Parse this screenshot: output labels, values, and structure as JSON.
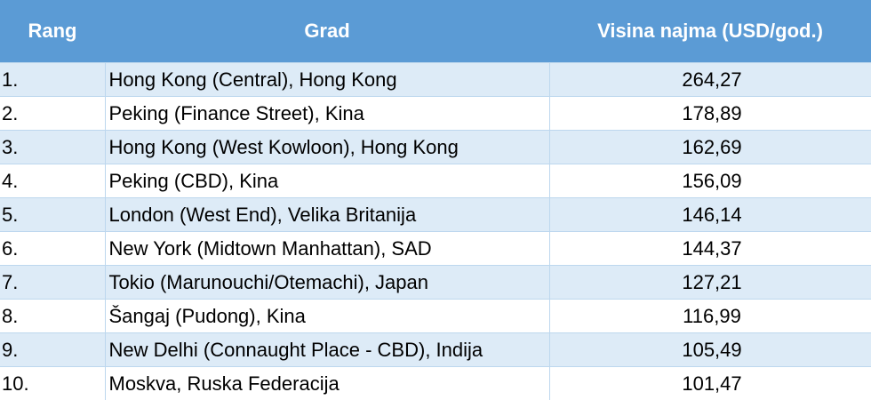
{
  "table": {
    "header": [
      "Rang",
      "Grad",
      "Visina najma (USD/god.)"
    ],
    "rows": [
      [
        "1.",
        "Hong Kong (Central), Hong Kong",
        "264,27"
      ],
      [
        "2.",
        "Peking (Finance Street), Kina",
        "178,89"
      ],
      [
        "3.",
        "Hong Kong (West Kowloon), Hong Kong",
        "162,69"
      ],
      [
        "4.",
        "Peking (CBD), Kina",
        "156,09"
      ],
      [
        "5.",
        "London (West End), Velika Britanija",
        "146,14"
      ],
      [
        "6.",
        "New York (Midtown Manhattan), SAD",
        "144,37"
      ],
      [
        "7.",
        "Tokio (Marunouchi/Otemachi), Japan",
        "127,21"
      ],
      [
        "8.",
        "Šangaj (Pudong), Kina",
        "116,99"
      ],
      [
        "9.",
        "New Delhi (Connaught Place - CBD), Indija",
        "105,49"
      ],
      [
        "10.",
        "Moskva, Ruska Federacija",
        "101,47"
      ]
    ]
  }
}
